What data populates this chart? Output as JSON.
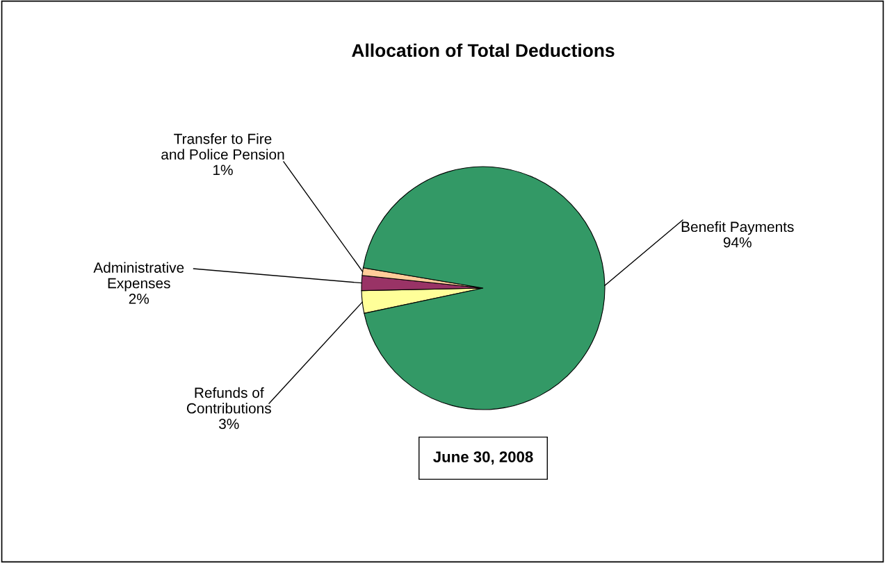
{
  "chart_data": {
    "type": "pie",
    "title": "Allocation of Total Deductions",
    "categories": [
      "Refunds of\nContributions",
      "Administrative\nExpenses",
      "Transfer to Fire\nand Police Pension",
      "Benefit Payments"
    ],
    "values": [
      3,
      2,
      1,
      94
    ],
    "colors": [
      "#ffff99",
      "#993366",
      "#ffcc99",
      "#339966"
    ],
    "value_labels": [
      "3%",
      "2%",
      "1%",
      "94%"
    ],
    "legend": false,
    "annotations": [
      "June 30, 2008"
    ]
  }
}
